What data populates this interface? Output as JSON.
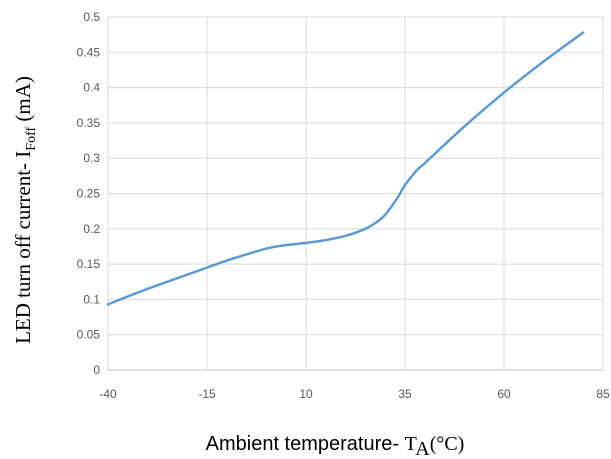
{
  "chart_data": {
    "type": "line",
    "title": "",
    "xlabel": {
      "prefix": "Ambient temperature- ",
      "symbol": "T",
      "subscript": "A",
      "unit": "(°C)"
    },
    "ylabel": {
      "prefix": "LED turn off current- I",
      "subscript": "Foff",
      "unit": " (mA)"
    },
    "xlim": [
      -40,
      85
    ],
    "ylim": [
      0,
      0.5
    ],
    "x_ticks": [
      "-40",
      "-15",
      "10",
      "35",
      "60",
      "85"
    ],
    "y_ticks": [
      "0",
      "0.05",
      "0.1",
      "0.15",
      "0.2",
      "0.25",
      "0.3",
      "0.35",
      "0.4",
      "0.45",
      "0.5"
    ],
    "grid": true,
    "series": [
      {
        "name": "IFoff",
        "color": "#5b9bd5",
        "x": [
          -40,
          -30,
          -20,
          -15,
          -10,
          0,
          5,
          10,
          15,
          20,
          25,
          28,
          30,
          33,
          35,
          38,
          40,
          50,
          60,
          70,
          80
        ],
        "y": [
          0.093,
          0.115,
          0.135,
          0.145,
          0.155,
          0.172,
          0.177,
          0.18,
          0.184,
          0.19,
          0.2,
          0.21,
          0.22,
          0.243,
          0.262,
          0.283,
          0.293,
          0.345,
          0.393,
          0.437,
          0.478
        ]
      }
    ]
  }
}
